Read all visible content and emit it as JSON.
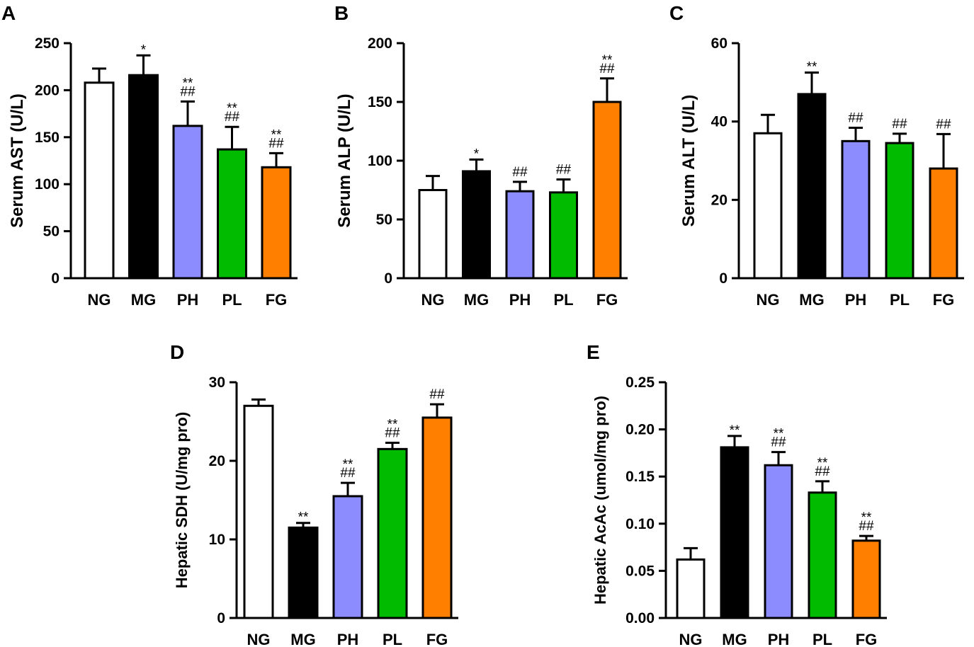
{
  "figure": {
    "colors": {
      "NG": "#ffffff",
      "MG": "#000000",
      "PH": "#8c8cff",
      "PL": "#00bb00",
      "FG": "#ff8000",
      "stroke": "#000000"
    },
    "category_colors": [
      "NG",
      "MG",
      "PH",
      "PL",
      "FG"
    ]
  },
  "chart_data": [
    {
      "panel": "A",
      "type": "bar",
      "ylabel": "Serum AST (U/L)",
      "categories": [
        "NG",
        "MG",
        "PH",
        "PL",
        "FG"
      ],
      "values": [
        208,
        216,
        162,
        137,
        118
      ],
      "errors": [
        15,
        21,
        26,
        24,
        15
      ],
      "annotations": [
        [],
        [
          "*"
        ],
        [
          "**",
          "##"
        ],
        [
          "**",
          "##"
        ],
        [
          "**",
          "##"
        ]
      ],
      "ylim": [
        0,
        250
      ],
      "yticks": [
        0,
        50,
        100,
        150,
        200,
        250
      ]
    },
    {
      "panel": "B",
      "type": "bar",
      "ylabel": "Serum ALP (U/L)",
      "categories": [
        "NG",
        "MG",
        "PH",
        "PL",
        "FG"
      ],
      "values": [
        75,
        91,
        74,
        73,
        150
      ],
      "errors": [
        12,
        10,
        8,
        11,
        20
      ],
      "annotations": [
        [],
        [
          "*"
        ],
        [
          "##"
        ],
        [
          "##"
        ],
        [
          "**",
          "##"
        ]
      ],
      "ylim": [
        0,
        200
      ],
      "yticks": [
        0,
        50,
        100,
        150,
        200
      ]
    },
    {
      "panel": "C",
      "type": "bar",
      "ylabel": "Serum ALT (U/L)",
      "categories": [
        "NG",
        "MG",
        "PH",
        "PL",
        "FG"
      ],
      "values": [
        37,
        47,
        35,
        34.5,
        28
      ],
      "errors": [
        4.7,
        5.5,
        3.4,
        2.4,
        8.8
      ],
      "annotations": [
        [],
        [
          "**"
        ],
        [
          "##"
        ],
        [
          "##"
        ],
        [
          "##"
        ]
      ],
      "ylim": [
        0,
        60
      ],
      "yticks": [
        0,
        20,
        40,
        60
      ]
    },
    {
      "panel": "D",
      "type": "bar",
      "ylabel": "Hepatic SDH (U/mg pro)",
      "categories": [
        "NG",
        "MG",
        "PH",
        "PL",
        "FG"
      ],
      "values": [
        27,
        11.5,
        15.5,
        21.5,
        25.5
      ],
      "errors": [
        0.8,
        0.6,
        1.7,
        0.8,
        1.7
      ],
      "annotations": [
        [],
        [
          "**"
        ],
        [
          "**",
          "##"
        ],
        [
          "**",
          "##"
        ],
        [
          "##"
        ]
      ],
      "ylim": [
        0,
        30
      ],
      "yticks": [
        0,
        10,
        20,
        30
      ]
    },
    {
      "panel": "E",
      "type": "bar",
      "ylabel": "Hepatic AcAc (umol/mg pro)",
      "categories": [
        "NG",
        "MG",
        "PH",
        "PL",
        "FG"
      ],
      "values": [
        0.062,
        0.181,
        0.162,
        0.133,
        0.082
      ],
      "errors": [
        0.012,
        0.012,
        0.014,
        0.012,
        0.005
      ],
      "annotations": [
        [],
        [
          "**"
        ],
        [
          "**",
          "##"
        ],
        [
          "**",
          "##"
        ],
        [
          "**",
          "##"
        ]
      ],
      "ylim": [
        0,
        0.25
      ],
      "yticks": [
        "0.00",
        "0.05",
        "0.10",
        "0.15",
        "0.20",
        "0.25"
      ]
    }
  ]
}
